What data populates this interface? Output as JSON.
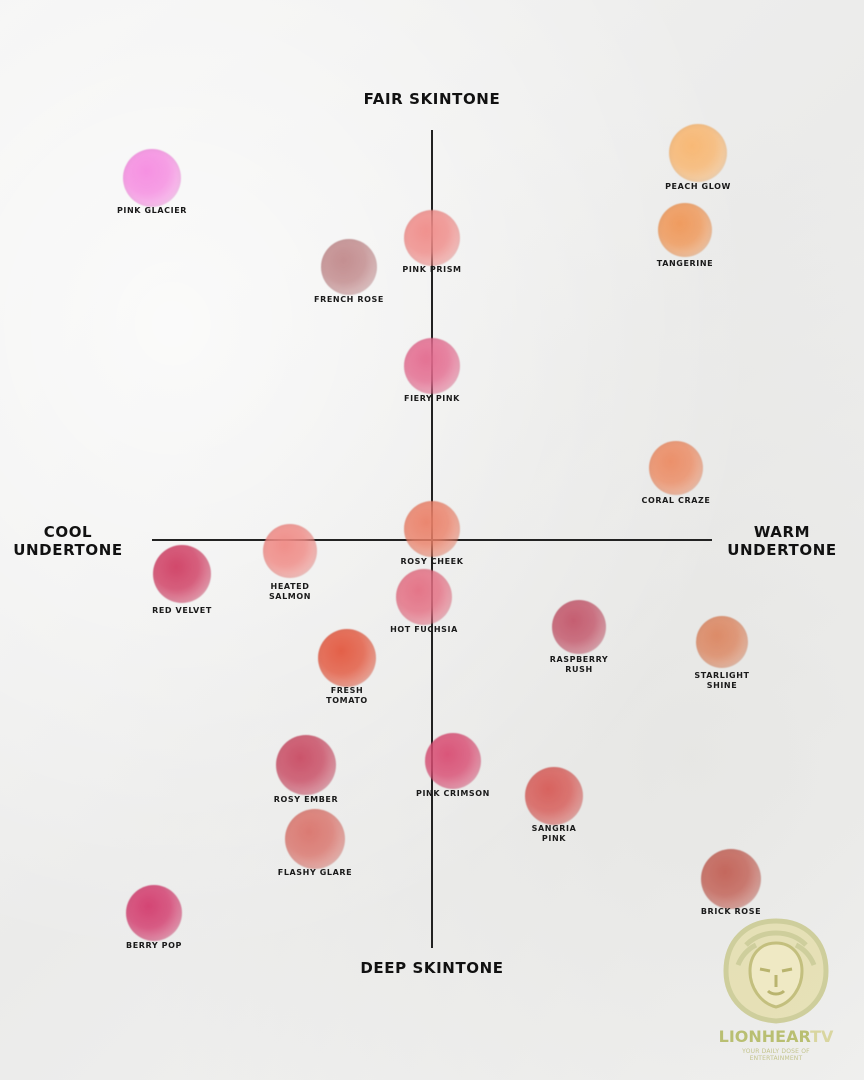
{
  "axes": {
    "top": "FAIR SKINTONE",
    "bottom": "DEEP SKINTONE",
    "left": "COOL\nUNDERTONE",
    "right": "WARM\nUNDERTONE"
  },
  "swatches": [
    {
      "label": "PINK GLACIER",
      "color": "#f58ae0"
    },
    {
      "label": "PEACH GLOW",
      "color": "#f8b56e"
    },
    {
      "label": "TANGERINE",
      "color": "#ef9656"
    },
    {
      "label": "PINK PRISM",
      "color": "#ef8b88"
    },
    {
      "label": "FRENCH ROSE",
      "color": "#c0888a"
    },
    {
      "label": "FIERY PINK",
      "color": "#e36a8e"
    },
    {
      "label": "CORAL CRAZE",
      "color": "#eb8a62"
    },
    {
      "label": "ROSY CHEEK",
      "color": "#ea8068"
    },
    {
      "label": "HEATED\nSALMON",
      "color": "#ef8984"
    },
    {
      "label": "RED VELVET",
      "color": "#cf3d62"
    },
    {
      "label": "HOT FUCHSIA",
      "color": "#e36e82"
    },
    {
      "label": "RASPBERRY\nRUSH",
      "color": "#c25569"
    },
    {
      "label": "STARLIGHT\nSHINE",
      "color": "#db8560"
    },
    {
      "label": "FRESH\nTOMATO",
      "color": "#e2573e"
    },
    {
      "label": "ROSY EMBER",
      "color": "#c84a62"
    },
    {
      "label": "PINK CRIMSON",
      "color": "#d84c72"
    },
    {
      "label": "SANGRIA\nPINK",
      "color": "#d65a56"
    },
    {
      "label": "FLASHY GLARE",
      "color": "#d9736b"
    },
    {
      "label": "BRICK ROSE",
      "color": "#c15f54"
    },
    {
      "label": "BERRY POP",
      "color": "#d23a6c"
    }
  ],
  "logo": {
    "word_main": "LIONHEAR",
    "word_accent": "TV",
    "tagline": "YOUR DAILY DOSE OF ENTERTAINMENT",
    "color": "#b9bf72"
  }
}
